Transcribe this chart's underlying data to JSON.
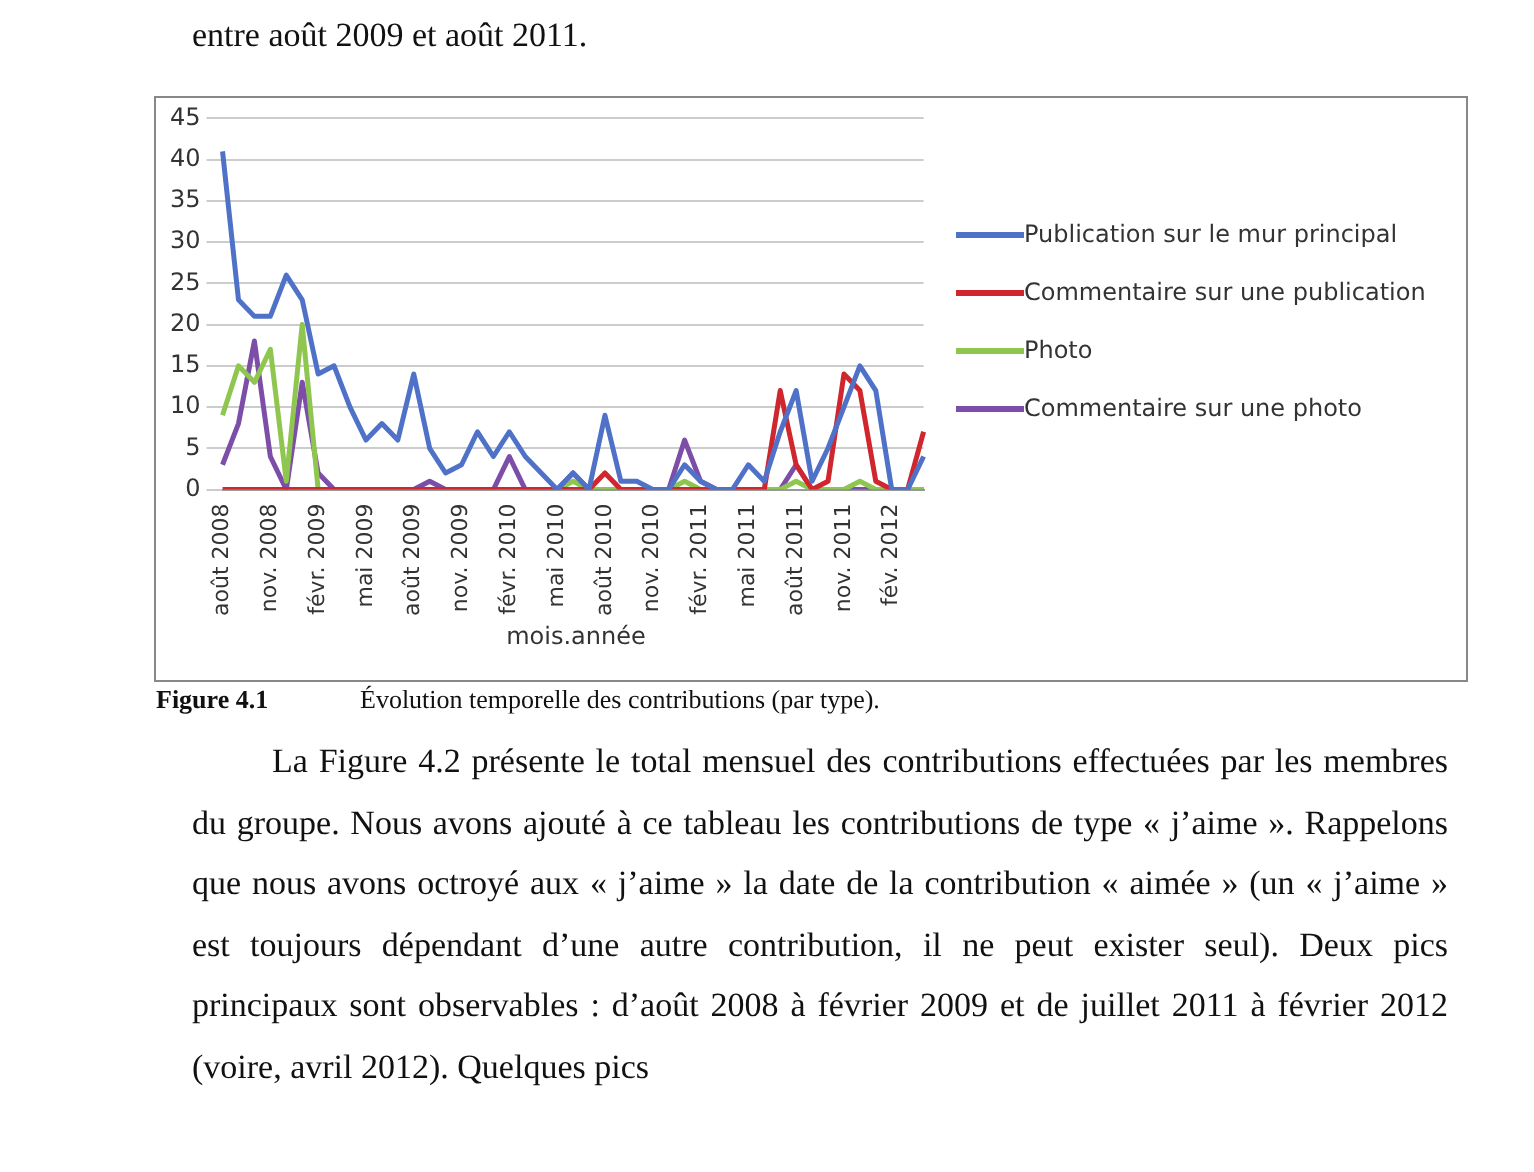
{
  "chart_data": {
    "type": "line",
    "xlabel": "mois.année",
    "categories": [
      "août 2008",
      null,
      null,
      "nov. 2008",
      null,
      null,
      "févr. 2009",
      null,
      null,
      "mai 2009",
      null,
      null,
      "août 2009",
      null,
      null,
      "nov. 2009",
      null,
      null,
      "févr. 2010",
      null,
      null,
      "mai 2010",
      null,
      null,
      "août 2010",
      null,
      null,
      "nov. 2010",
      null,
      null,
      "févr. 2011",
      null,
      null,
      "mai 2011",
      null,
      null,
      "août 2011",
      null,
      null,
      "nov. 2011",
      null,
      null,
      "fév. 2012",
      null,
      null
    ],
    "series": [
      {
        "name": "Publication sur le mur principal",
        "color": "#4f72c8",
        "values": [
          41,
          23,
          21,
          21,
          26,
          23,
          14,
          15,
          10,
          6,
          8,
          6,
          14,
          5,
          2,
          3,
          7,
          4,
          7,
          4,
          2,
          0,
          2,
          0,
          9,
          1,
          1,
          0,
          0,
          3,
          1,
          0,
          0,
          3,
          1,
          7,
          12,
          1,
          5,
          10,
          15,
          12,
          0,
          0,
          4
        ]
      },
      {
        "name": "Commentaire sur une publication",
        "color": "#d0262e",
        "values": [
          0,
          0,
          0,
          0,
          0,
          0,
          0,
          0,
          0,
          0,
          0,
          0,
          0,
          0,
          0,
          0,
          0,
          0,
          0,
          0,
          0,
          0,
          0,
          0,
          2,
          0,
          0,
          0,
          0,
          0,
          0,
          0,
          0,
          0,
          0,
          12,
          3,
          0,
          1,
          14,
          12,
          1,
          0,
          0,
          7
        ]
      },
      {
        "name": "Photo",
        "color": "#8ec650",
        "values": [
          9,
          15,
          13,
          17,
          1,
          20,
          0,
          0,
          0,
          0,
          0,
          0,
          0,
          0,
          0,
          0,
          0,
          0,
          0,
          0,
          0,
          0,
          1,
          0,
          0,
          0,
          0,
          0,
          0,
          1,
          0,
          0,
          0,
          0,
          0,
          0,
          1,
          0,
          0,
          0,
          1,
          0,
          0,
          0,
          0
        ]
      },
      {
        "name": "Commentaire sur une photo",
        "color": "#7d4ea8",
        "values": [
          3,
          8,
          18,
          4,
          0,
          13,
          2,
          0,
          0,
          0,
          0,
          0,
          0,
          1,
          0,
          0,
          0,
          0,
          4,
          0,
          0,
          0,
          2,
          0,
          0,
          0,
          0,
          0,
          0,
          6,
          1,
          0,
          0,
          0,
          0,
          0,
          3,
          0,
          0,
          0,
          0,
          0,
          0,
          0,
          0
        ]
      }
    ],
    "ylim": [
      0,
      45
    ],
    "yticks": [
      0,
      5,
      10,
      15,
      20,
      25,
      30,
      35,
      40,
      45
    ],
    "grid": "y",
    "legend": "right",
    "annotations": [
      "entre août 2009 et août 2011.",
      "Figure 4.1",
      "Évolution temporelle des contributions (par type).",
      "La Figure 4.2 présente le total mensuel des contributions effectuées par les membres du groupe. Nous avons ajouté à ce tableau les contributions de type « j’aime ». Rappelons que nous avons octroyé aux « j’aime » la date de la contribution « aimée » (un « j’aime » est toujours dépendant d’une autre contribution, il ne peut exister seul). Deux pics principaux sont observables : d’août 2008 à février 2009 et de juillet 2011 à février 2012 (voire, avril 2012). Quelques pics"
    ]
  }
}
